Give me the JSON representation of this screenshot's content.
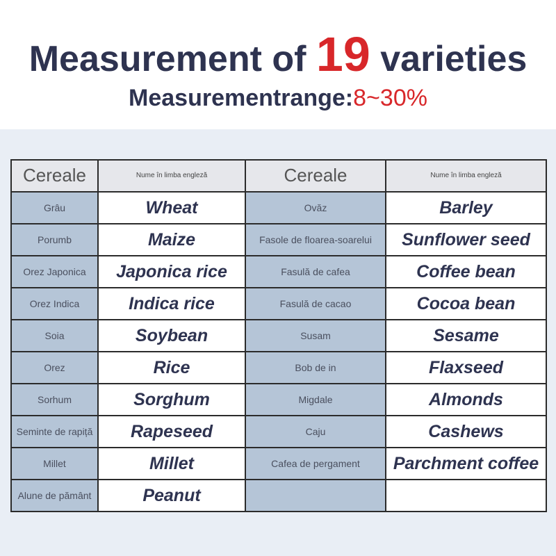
{
  "header": {
    "title_start": "Measurement of",
    "title_number": 19,
    "title_end": "varieties",
    "subtitle_label": "Measurementrange:",
    "subtitle_range": "8~30%"
  },
  "table": {
    "columns": [
      "Cereale",
      "Nume în limba engleză",
      "Cereale",
      "Nume în limba engleză"
    ],
    "rows": [
      [
        "Grâu",
        "Wheat",
        "Ovăz",
        "Barley"
      ],
      [
        "Porumb",
        "Maize",
        "Fasole de floarea-soarelui",
        "Sunflower seed"
      ],
      [
        "Orez Japonica",
        "Japonica rice",
        "Fasulă de cafea",
        "Coffee bean"
      ],
      [
        "Orez Indica",
        "Indica rice",
        "Fasulă de cacao",
        "Cocoa bean"
      ],
      [
        "Soia",
        "Soybean",
        "Susam",
        "Sesame"
      ],
      [
        "Orez",
        "Rice",
        "Bob de in",
        "Flaxseed"
      ],
      [
        "Sorhum",
        "Sorghum",
        "Migdale",
        "Almonds"
      ],
      [
        "Seminte de rapiță",
        "Rapeseed",
        "Caju",
        "Cashews"
      ],
      [
        "Millet",
        "Millet",
        "Cafea de pergament",
        "Parchment coffee"
      ],
      [
        "Alune de pământ",
        "Peanut"
      ]
    ]
  }
}
